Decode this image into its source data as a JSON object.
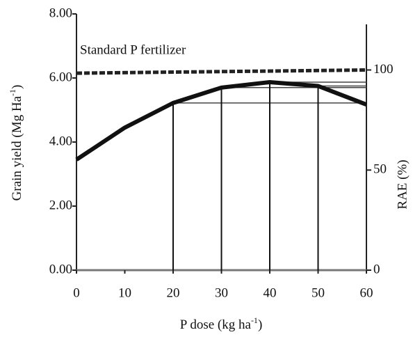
{
  "chart_data": {
    "type": "line",
    "xlabel": {
      "text": "P dose (kg ha",
      "sup": "-1",
      "end": ")"
    },
    "ylabel": {
      "text": "Grain yield  (Mg Ha",
      "sup": "-1",
      "end": ")"
    },
    "y2label": "RAE (%)",
    "annotation": "Standard P fertilizer",
    "x": [
      0,
      10,
      20,
      30,
      40,
      50,
      60
    ],
    "series": [
      {
        "name": "Grain yield",
        "color": "#111111",
        "values": [
          3.45,
          4.45,
          5.22,
          5.7,
          5.87,
          5.75,
          5.17
        ]
      }
    ],
    "reference_line": {
      "x": [
        0,
        60
      ],
      "values": [
        6.15,
        6.25
      ],
      "color": "#222222"
    },
    "drop_lines_at": [
      20,
      30,
      40,
      50
    ],
    "xlim": [
      0,
      60
    ],
    "xticks": [
      0,
      10,
      20,
      30,
      40,
      50,
      60
    ],
    "ylim": [
      0,
      8
    ],
    "yticks": [
      {
        "value": 0,
        "label": "0.00"
      },
      {
        "value": 2,
        "label": "2.00"
      },
      {
        "value": 4,
        "label": "4.00"
      },
      {
        "value": 6,
        "label": "6.00"
      },
      {
        "value": 8,
        "label": "8.00"
      }
    ],
    "y2lim": [
      0,
      128
    ],
    "y2ticks": [
      0,
      50,
      100
    ]
  }
}
